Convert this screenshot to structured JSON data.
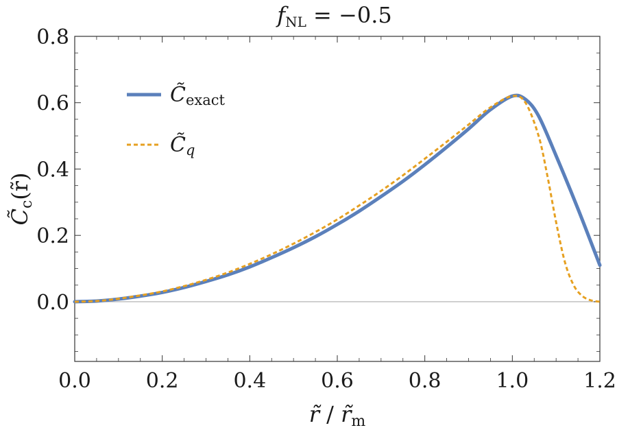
{
  "chart_data": {
    "type": "line",
    "title": "f_NL = −0.5",
    "title_parts": {
      "main": "f",
      "sub": "NL",
      "rest": " = −0.5"
    },
    "xlabel": "r̃ / r̃m",
    "xlabel_parts": {
      "var": "r̃",
      "sep": " / ",
      "den": "r̃",
      "sub": "m"
    },
    "ylabel": "C̃c(r̃)",
    "ylabel_parts": {
      "main": "C̃",
      "sub": "c",
      "arg": "(r̃)"
    },
    "xlim": [
      0,
      1.2
    ],
    "ylim": [
      -0.18,
      0.8
    ],
    "x_ticks": [
      "0.0",
      "0.2",
      "0.4",
      "0.6",
      "0.8",
      "1.0",
      "1.2"
    ],
    "y_ticks": [
      "0.0",
      "0.2",
      "0.4",
      "0.6",
      "0.8"
    ],
    "grid": false,
    "legend_position": "top-left",
    "zero_line": true,
    "series": [
      {
        "name": "C̃exact",
        "label_main": "C̃",
        "label_sub": "exact",
        "color": "#5b80bb",
        "style": "solid",
        "x": [
          0,
          0.05,
          0.1,
          0.15,
          0.2,
          0.25,
          0.3,
          0.35,
          0.4,
          0.45,
          0.5,
          0.55,
          0.6,
          0.65,
          0.7,
          0.75,
          0.8,
          0.85,
          0.9,
          0.95,
          1.0,
          1.03,
          1.06,
          1.1,
          1.15,
          1.2
        ],
        "y": [
          0,
          0.002,
          0.008,
          0.017,
          0.028,
          0.043,
          0.061,
          0.081,
          0.105,
          0.133,
          0.163,
          0.196,
          0.233,
          0.273,
          0.317,
          0.363,
          0.413,
          0.466,
          0.521,
          0.579,
          0.62,
          0.61,
          0.56,
          0.44,
          0.28,
          0.11
        ]
      },
      {
        "name": "C̃q",
        "label_main": "C̃",
        "label_sub": "q",
        "color": "#e6a021",
        "style": "dashed",
        "x": [
          0,
          0.05,
          0.1,
          0.15,
          0.2,
          0.25,
          0.3,
          0.35,
          0.4,
          0.45,
          0.5,
          0.55,
          0.6,
          0.65,
          0.7,
          0.75,
          0.8,
          0.85,
          0.9,
          0.95,
          1.0,
          1.03,
          1.06,
          1.08,
          1.1,
          1.12,
          1.14,
          1.16,
          1.18,
          1.2
        ],
        "y": [
          0,
          0.002,
          0.009,
          0.019,
          0.031,
          0.047,
          0.066,
          0.088,
          0.114,
          0.143,
          0.175,
          0.21,
          0.248,
          0.29,
          0.334,
          0.381,
          0.431,
          0.482,
          0.534,
          0.586,
          0.62,
          0.6,
          0.5,
          0.38,
          0.24,
          0.12,
          0.05,
          0.017,
          0.004,
          0.0
        ]
      }
    ]
  }
}
